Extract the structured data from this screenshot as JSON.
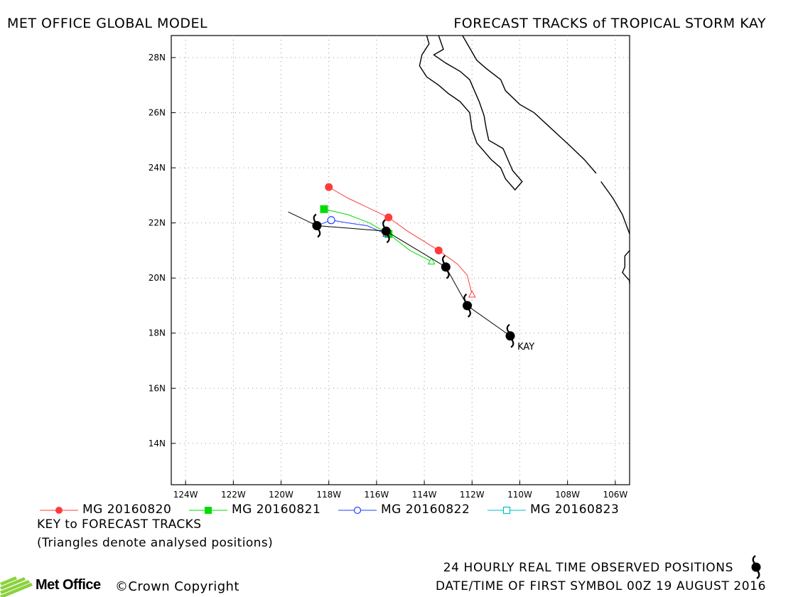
{
  "header": {
    "left": "MET OFFICE GLOBAL MODEL",
    "right": "FORECAST TRACKS of TROPICAL STORM KAY"
  },
  "map": {
    "lon_range": [
      -124.6,
      -105.4
    ],
    "lat_range": [
      12.5,
      28.8
    ],
    "lon_ticks": [
      {
        "value": -124,
        "label": "124W"
      },
      {
        "value": -122,
        "label": "122W"
      },
      {
        "value": -120,
        "label": "120W"
      },
      {
        "value": -118,
        "label": "118W"
      },
      {
        "value": -116,
        "label": "116W"
      },
      {
        "value": -114,
        "label": "114W"
      },
      {
        "value": -112,
        "label": "112W"
      },
      {
        "value": -110,
        "label": "110W"
      },
      {
        "value": -108,
        "label": "108W"
      },
      {
        "value": -106,
        "label": "106W"
      }
    ],
    "lat_ticks": [
      {
        "value": 14,
        "label": "14N"
      },
      {
        "value": 16,
        "label": "16N"
      },
      {
        "value": 18,
        "label": "18N"
      },
      {
        "value": 20,
        "label": "20N"
      },
      {
        "value": 22,
        "label": "22N"
      },
      {
        "value": 24,
        "label": "24N"
      },
      {
        "value": 26,
        "label": "26N"
      },
      {
        "value": 28,
        "label": "28N"
      }
    ],
    "grid": "dotted",
    "coastlines": [
      [
        [
          -113.4,
          28.8
        ],
        [
          -113.2,
          28.3
        ],
        [
          -113.6,
          28.1
        ],
        [
          -113.1,
          27.8
        ],
        [
          -112.5,
          27.5
        ],
        [
          -112.1,
          27.2
        ],
        [
          -111.9,
          26.8
        ],
        [
          -111.7,
          26.4
        ],
        [
          -111.5,
          25.9
        ],
        [
          -111.4,
          25.4
        ],
        [
          -111.3,
          25.0
        ],
        [
          -110.7,
          24.7
        ],
        [
          -110.5,
          24.3
        ],
        [
          -110.3,
          23.9
        ],
        [
          -109.9,
          23.5
        ],
        [
          -110.2,
          23.2
        ],
        [
          -110.6,
          23.6
        ],
        [
          -110.8,
          24.0
        ],
        [
          -111.2,
          24.3
        ],
        [
          -111.5,
          24.6
        ],
        [
          -111.8,
          24.9
        ],
        [
          -112.0,
          25.4
        ],
        [
          -112.1,
          26.0
        ],
        [
          -112.5,
          26.4
        ],
        [
          -113.0,
          26.7
        ],
        [
          -113.4,
          27.0
        ],
        [
          -113.9,
          27.3
        ],
        [
          -114.2,
          27.7
        ],
        [
          -114.1,
          28.1
        ],
        [
          -113.8,
          28.5
        ],
        [
          -113.9,
          28.8
        ]
      ],
      [
        [
          -112.4,
          28.8
        ],
        [
          -112.0,
          28.2
        ],
        [
          -111.8,
          27.9
        ],
        [
          -111.4,
          27.6
        ],
        [
          -110.8,
          27.2
        ],
        [
          -110.6,
          26.8
        ],
        [
          -110.0,
          26.3
        ],
        [
          -109.4,
          26.0
        ],
        [
          -108.9,
          25.6
        ],
        [
          -108.4,
          25.2
        ],
        [
          -107.9,
          24.8
        ],
        [
          -107.3,
          24.3
        ],
        [
          -106.8,
          23.8
        ]
      ],
      [
        [
          -106.6,
          23.5
        ],
        [
          -106.1,
          22.9
        ],
        [
          -105.7,
          22.3
        ],
        [
          -105.4,
          21.6
        ]
      ],
      [
        [
          -105.4,
          21.0
        ],
        [
          -105.6,
          20.8
        ],
        [
          -105.6,
          20.4
        ],
        [
          -105.7,
          20.2
        ],
        [
          -105.4,
          19.9
        ],
        [
          -105.4,
          19.8
        ]
      ]
    ],
    "observed_track": [
      [
        -110.4,
        17.9
      ],
      [
        -112.2,
        19.0
      ],
      [
        -113.1,
        20.4
      ],
      [
        -115.6,
        21.7
      ],
      [
        -118.5,
        21.9
      ],
      [
        -119.7,
        22.4
      ]
    ],
    "observed_symbols": [
      [
        -110.4,
        17.9
      ],
      [
        -112.2,
        19.0
      ],
      [
        -113.1,
        20.4
      ],
      [
        -115.6,
        21.7
      ],
      [
        -118.5,
        21.9
      ]
    ],
    "storm_label": "KAY",
    "storm_label_pos": [
      -110.1,
      17.4
    ]
  },
  "tracks": [
    {
      "label": "MG 20160820",
      "color": "#ff3b3b",
      "marker": "circle-filled",
      "analysed": [
        -112.0,
        19.4
      ],
      "points": [
        [
          -112.0,
          19.4
        ],
        [
          -112.2,
          20.1
        ],
        [
          -112.6,
          20.5
        ],
        [
          -113.4,
          21.0
        ],
        [
          -114.7,
          21.7
        ],
        [
          -115.5,
          22.2
        ],
        [
          -117.2,
          22.9
        ],
        [
          -118.0,
          23.3
        ]
      ],
      "markers": [
        [
          -113.4,
          21.0
        ],
        [
          -115.5,
          22.2
        ],
        [
          -118.0,
          23.3
        ]
      ]
    },
    {
      "label": "MG 20160821",
      "color": "#00dd00",
      "marker": "square-filled",
      "analysed": [
        -113.7,
        20.6
      ],
      "points": [
        [
          -113.7,
          20.6
        ],
        [
          -114.6,
          21.0
        ],
        [
          -115.5,
          21.6
        ],
        [
          -116.3,
          22.0
        ],
        [
          -117.2,
          22.3
        ],
        [
          -118.2,
          22.5
        ]
      ],
      "markers": [
        [
          -115.5,
          21.6
        ],
        [
          -118.2,
          22.5
        ]
      ]
    },
    {
      "label": "MG 20160822",
      "color": "#2040ff",
      "marker": "circle-open",
      "analysed": [
        -115.6,
        21.6
      ],
      "points": [
        [
          -115.6,
          21.6
        ],
        [
          -116.4,
          21.9
        ],
        [
          -117.2,
          22.0
        ],
        [
          -117.9,
          22.1
        ],
        [
          -118.5,
          21.9
        ]
      ],
      "markers": [
        [
          -117.9,
          22.1
        ]
      ]
    },
    {
      "label": "MG 20160823",
      "color": "#00c0c0",
      "marker": "square-open",
      "analysed": null,
      "points": [],
      "markers": []
    }
  ],
  "key": {
    "title": "KEY to FORECAST TRACKS",
    "subtitle": "(Triangles denote analysed positions)"
  },
  "footer": {
    "observed": "24 HOURLY REAL TIME OBSERVED POSITIONS",
    "date": "DATE/TIME OF FIRST SYMBOL 00Z 19 AUGUST 2016",
    "logo": "Met Office",
    "copyright": "©Crown Copyright"
  }
}
